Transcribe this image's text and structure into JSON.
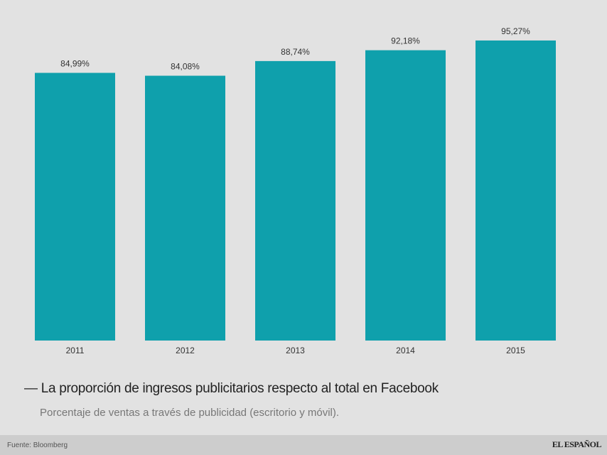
{
  "chart_data": {
    "type": "bar",
    "title": "La proporción de ingresos publicitarios respecto al total en Facebook",
    "subtitle": "Porcentaje de ventas a través de publicidad (escritorio y móvil).",
    "categories": [
      "2011",
      "2012",
      "2013",
      "2014",
      "2015"
    ],
    "values": [
      84.99,
      84.08,
      88.74,
      92.18,
      95.27
    ],
    "data_labels": [
      "84,99%",
      "84,08%",
      "88,74%",
      "92,18%",
      "95,27%"
    ],
    "ylim": [
      0,
      100
    ],
    "grid": false,
    "bar_color": "#0fa0ac"
  },
  "footer": {
    "source": "Fuente: Bloomberg",
    "logo": "EL ESPAÑOL"
  }
}
